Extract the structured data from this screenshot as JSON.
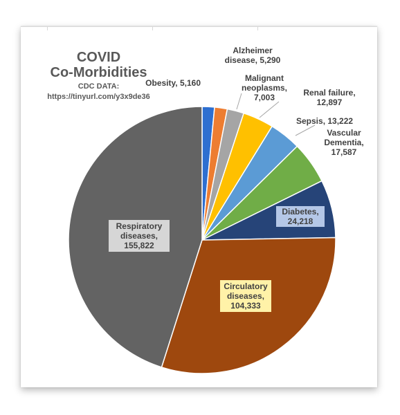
{
  "chart_data": {
    "type": "pie",
    "title": "COVID Co-Morbidities",
    "title_lines": [
      "COVID",
      "Co-Morbidities"
    ],
    "subtitle_lines": [
      "CDC DATA:",
      "https://tinyurl.com/y3x9de36"
    ],
    "start_angle_deg": 0,
    "direction": "clockwise",
    "slices": [
      {
        "label": "Obesity",
        "value": 5160,
        "value_text": "5,160",
        "color": "#2E6FD0"
      },
      {
        "label": "Alzheimer disease",
        "value": 5290,
        "value_text": "5,290",
        "color": "#ED7D31"
      },
      {
        "label": "Malignant neoplasms",
        "value": 7003,
        "value_text": "7,003",
        "color": "#A5A5A5"
      },
      {
        "label": "Renal failure",
        "value": 12897,
        "value_text": "12,897",
        "color": "#FFC000"
      },
      {
        "label": "Sepsis",
        "value": 13222,
        "value_text": "13,222",
        "color": "#5B9BD5"
      },
      {
        "label": "Vascular Dementia",
        "value": 17587,
        "value_text": "17,587",
        "color": "#70AD47"
      },
      {
        "label": "Diabetes",
        "value": 24218,
        "value_text": "24,218",
        "color": "#264478"
      },
      {
        "label": "Circulatory diseases",
        "value": 104333,
        "value_text": "104,333",
        "color": "#9E480E"
      },
      {
        "label": "Respiratory diseases",
        "value": 155822,
        "value_text": "155,822",
        "color": "#636363"
      }
    ],
    "data_labels": [
      {
        "lines": [
          "Obesity, 5,160"
        ]
      },
      {
        "lines": [
          "Alzheimer",
          "disease, 5,290"
        ]
      },
      {
        "lines": [
          "Malignant",
          "neoplasms,",
          "7,003"
        ]
      },
      {
        "lines": [
          "Renal failure,",
          "12,897"
        ]
      },
      {
        "lines": [
          "Sepsis, 13,222"
        ]
      },
      {
        "lines": [
          "Vascular",
          "Dementia,",
          "17,587"
        ]
      },
      {
        "lines": [
          "Diabetes,",
          "24,218"
        ]
      },
      {
        "lines": [
          "Circulatory",
          "diseases,",
          "104,333"
        ]
      },
      {
        "lines": [
          "Respiratory",
          "diseases,",
          "155,822"
        ]
      }
    ]
  }
}
